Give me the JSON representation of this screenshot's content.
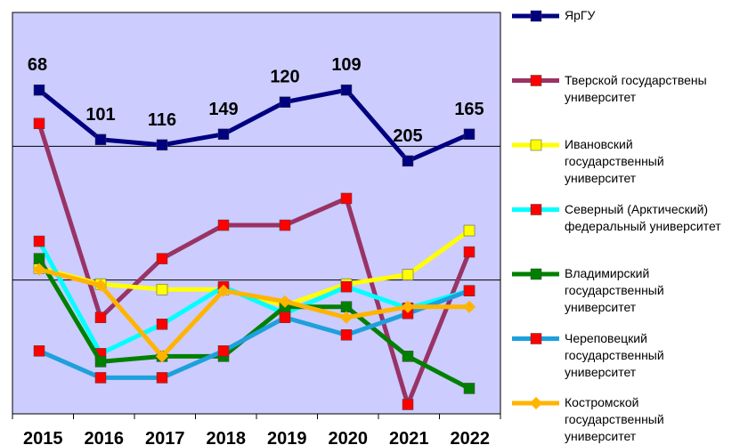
{
  "chart_data": {
    "type": "line",
    "categories": [
      "2015",
      "2016",
      "2017",
      "2018",
      "2019",
      "2020",
      "2021",
      "2022"
    ],
    "ylim": [
      0,
      3
    ],
    "yticks": [
      1,
      2
    ],
    "grid": true,
    "background": "#ccccff",
    "legend": "right",
    "series": [
      {
        "name": "ЯрГУ",
        "color": "#000080",
        "marker_color": "#000080",
        "marker": "square",
        "values": [
          2.42,
          2.05,
          2.01,
          2.09,
          2.33,
          2.42,
          1.89,
          2.09
        ],
        "point_labels": [
          68,
          101,
          116,
          149,
          120,
          109,
          205,
          165
        ]
      },
      {
        "name": "Тверской государствены университет",
        "color": "#993366",
        "marker_color": "#ff0000",
        "marker": "square",
        "values": [
          2.17,
          0.72,
          1.16,
          1.41,
          1.41,
          1.61,
          0.07,
          1.21
        ]
      },
      {
        "name": "Ивановский государственный университет",
        "color": "#ffff00",
        "marker_color": "#ffff00",
        "marker": "square",
        "values": [
          1.09,
          0.97,
          0.93,
          0.93,
          0.81,
          0.97,
          1.04,
          1.37
        ]
      },
      {
        "name": "Северный (Арктический) федеральный университет",
        "color": "#00ffff",
        "marker_color": "#ff0000",
        "marker": "square",
        "values": [
          1.29,
          0.45,
          0.67,
          0.95,
          0.75,
          0.95,
          0.79,
          0.92
        ]
      },
      {
        "name": "Владимирский государственный университет",
        "color": "#008000",
        "marker_color": "#008000",
        "marker": "square",
        "values": [
          1.16,
          0.39,
          0.43,
          0.43,
          0.8,
          0.8,
          0.43,
          0.19
        ]
      },
      {
        "name": "Череповецкий государственный университет",
        "color": "#1ea0dc",
        "marker_color": "#ff0000",
        "marker": "square",
        "values": [
          0.47,
          0.27,
          0.27,
          0.47,
          0.72,
          0.59,
          0.75,
          0.92
        ]
      },
      {
        "name": "Костромской государственный университет",
        "color": "#ffb400",
        "marker_color": "#ffb400",
        "marker": "diamond",
        "values": [
          1.08,
          0.96,
          0.43,
          0.92,
          0.84,
          0.72,
          0.8,
          0.8
        ]
      }
    ]
  }
}
